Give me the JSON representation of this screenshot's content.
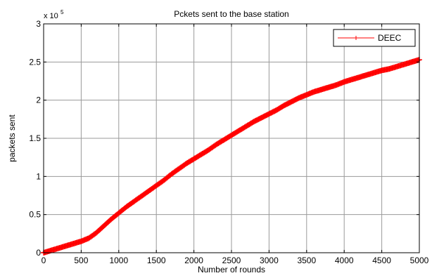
{
  "chart_data": {
    "type": "line",
    "title": "Pckets sent to the base station",
    "xlabel": "Number of rounds",
    "ylabel": "packets sent",
    "y_multiplier_label": "x 10",
    "y_multiplier_exponent": "5",
    "xlim": [
      0,
      5000
    ],
    "ylim": [
      0,
      3
    ],
    "xticks": [
      0,
      500,
      1000,
      1500,
      2000,
      2500,
      3000,
      3500,
      4000,
      4500,
      5000
    ],
    "xtick_labels": [
      "0",
      "500",
      "1000",
      "1500",
      "2000",
      "2500",
      "3000",
      "3500",
      "4000",
      "4500",
      "5000"
    ],
    "yticks": [
      0,
      0.5,
      1,
      1.5,
      2,
      2.5,
      3
    ],
    "ytick_labels": [
      "0",
      "0.5",
      "1",
      "1.5",
      "2",
      "2.5",
      "3"
    ],
    "grid": true,
    "legend_position": "top-right",
    "series": [
      {
        "name": "DEEC",
        "color": "#ff0000",
        "marker": "plus",
        "x": [
          0,
          100,
          200,
          300,
          400,
          500,
          600,
          700,
          800,
          900,
          1000,
          1100,
          1200,
          1300,
          1400,
          1500,
          1600,
          1700,
          1800,
          1900,
          2000,
          2100,
          2200,
          2300,
          2400,
          2500,
          2600,
          2700,
          2800,
          2900,
          3000,
          3100,
          3200,
          3300,
          3400,
          3500,
          3600,
          3700,
          3800,
          3900,
          4000,
          4100,
          4200,
          4300,
          4400,
          4500,
          4600,
          4700,
          4800,
          4900,
          5000
        ],
        "y": [
          0.0,
          0.03,
          0.06,
          0.09,
          0.12,
          0.15,
          0.19,
          0.26,
          0.35,
          0.44,
          0.52,
          0.6,
          0.67,
          0.74,
          0.81,
          0.88,
          0.95,
          1.03,
          1.1,
          1.17,
          1.23,
          1.29,
          1.35,
          1.42,
          1.48,
          1.54,
          1.6,
          1.66,
          1.72,
          1.77,
          1.82,
          1.87,
          1.93,
          1.98,
          2.03,
          2.07,
          2.11,
          2.14,
          2.17,
          2.2,
          2.24,
          2.27,
          2.3,
          2.33,
          2.36,
          2.39,
          2.41,
          2.44,
          2.47,
          2.5,
          2.53
        ]
      }
    ]
  }
}
